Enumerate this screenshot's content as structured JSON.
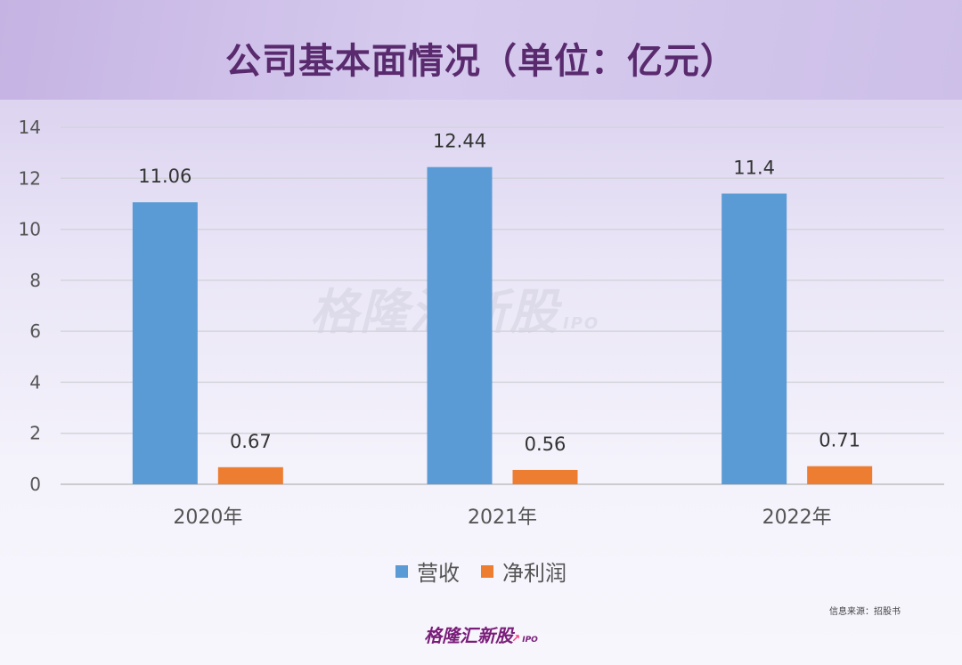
{
  "title": "公司基本面情况（单位：亿元）",
  "watermark": {
    "text": "格隆汇新股",
    "suffix": "IPO"
  },
  "source": "信息来源：招股书",
  "brand": {
    "text": "格隆汇新股",
    "suffix": "IPO"
  },
  "colors": {
    "revenue": "#5b9bd5",
    "profit": "#ed7d31",
    "title": "#5a2a6e"
  },
  "chart_data": {
    "type": "bar",
    "categories": [
      "2020年",
      "2021年",
      "2022年"
    ],
    "series": [
      {
        "name": "营收",
        "values": [
          11.06,
          12.44,
          11.4
        ],
        "labels": [
          "11.06",
          "12.44",
          "11.4"
        ],
        "color": "#5b9bd5"
      },
      {
        "name": "净利润",
        "values": [
          0.67,
          0.56,
          0.71
        ],
        "labels": [
          "0.67",
          "0.56",
          "0.71"
        ],
        "color": "#ed7d31"
      }
    ],
    "ylim": [
      0,
      14
    ],
    "yticks": [
      0,
      2,
      4,
      6,
      8,
      10,
      12,
      14
    ],
    "grid": true,
    "legend": "bottom"
  }
}
